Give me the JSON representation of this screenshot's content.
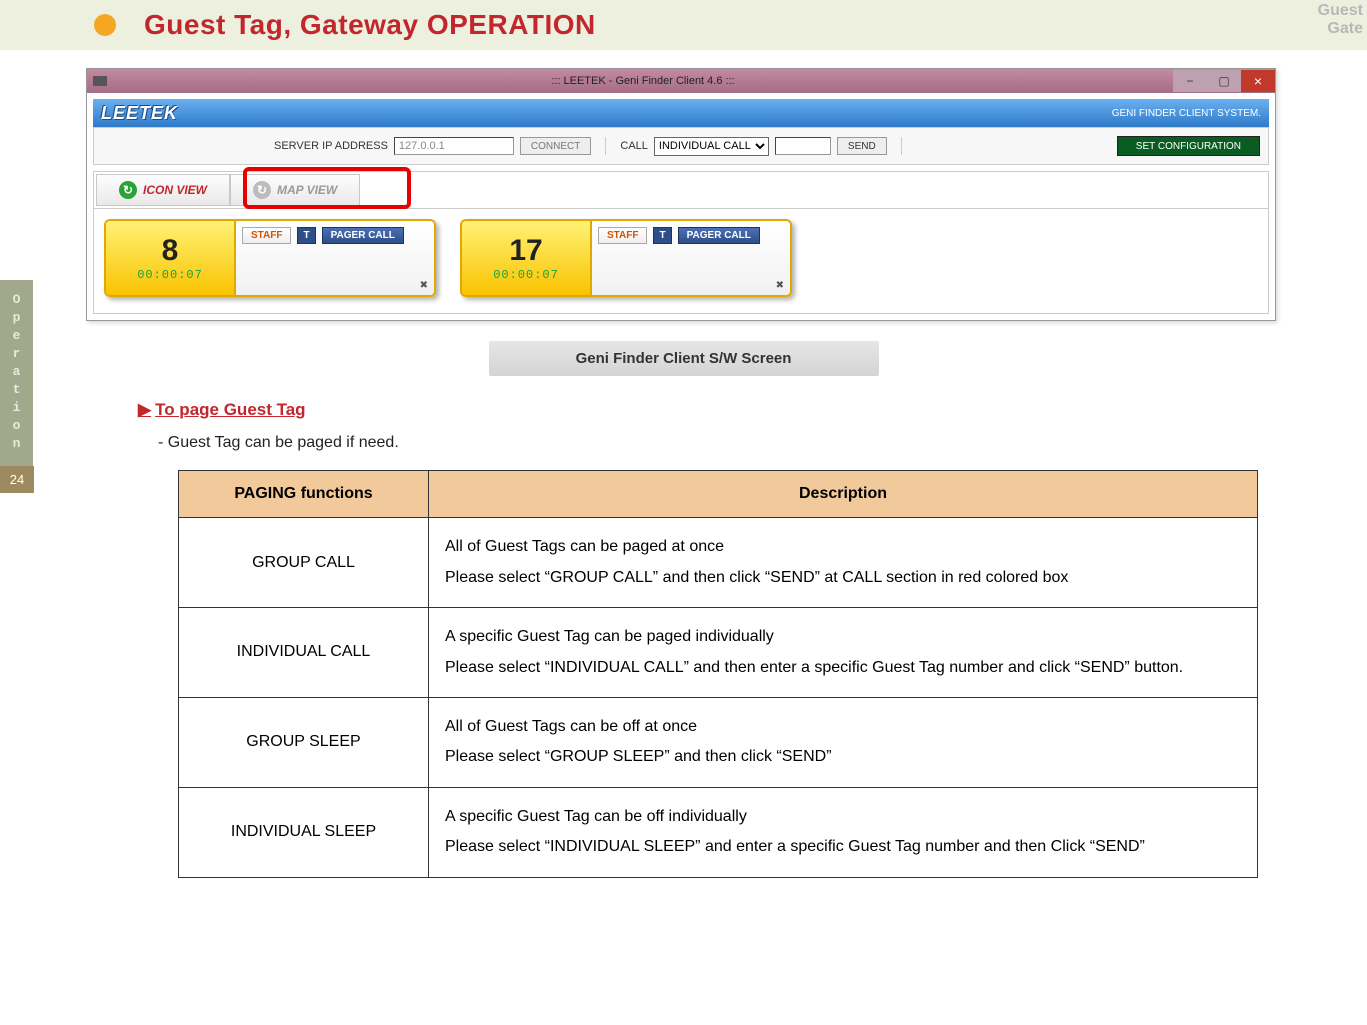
{
  "header": {
    "title": "Guest Tag, Gateway OPERATION",
    "right_line1": "Guest",
    "right_line2": "Gate",
    "bullet_color": "#f5a623",
    "title_color": "#c1272d",
    "band_bg": "#edf0de"
  },
  "sidebar": {
    "label": "Operation",
    "page_num": "24",
    "label_bg": "#a1a88b",
    "page_bg": "#9e8a5e"
  },
  "window": {
    "title": "::: LEETEK - Geni Finder Client 4.6 :::",
    "brand": "LEETEK",
    "brand_right": "GENI FINDER CLIENT SYSTEM.",
    "ip_label": "SERVER IP ADDRESS",
    "ip_value": "127.0.0.1",
    "connect_btn": "CONNECT",
    "call_label": "CALL",
    "call_selected": "INDIVIDUAL CALL",
    "send_btn": "SEND",
    "setconf_btn": "SET CONFIGURATION",
    "tab_icon": "ICON VIEW",
    "tab_map": "MAP VIEW",
    "titlebar_bg": "#a56d86",
    "brandbar_bg": "#2e7ac9",
    "setconf_bg": "#0a5c22",
    "redbox_color": "#e60000"
  },
  "cards": [
    {
      "num": "8",
      "time": "00:00:07",
      "staff": "STAFF",
      "t": "T",
      "pager": "PAGER CALL"
    },
    {
      "num": "17",
      "time": "00:00:07",
      "staff": "STAFF",
      "t": "T",
      "pager": "PAGER CALL"
    }
  ],
  "card_style": {
    "border_color": "#e0a800",
    "left_bg_top": "#fff176",
    "left_bg_bottom": "#f9c300",
    "time_color": "#1aa336",
    "pager_bg": "#2d4e86",
    "staff_color": "#d35400"
  },
  "caption": "Geni Finder Client S/W Screen",
  "section": {
    "heading": "To page Guest Tag",
    "arrow": "▶",
    "subline": "- Guest Tag can be paged if need.",
    "heading_color": "#c1272d"
  },
  "table": {
    "header_bg": "#f1c99a",
    "border_color": "#333333",
    "col1": "PAGING functions",
    "col2": "Description",
    "rows": [
      {
        "fn": "GROUP CALL",
        "desc": "All of Guest Tags can be paged at once\nPlease select \"GROUP CALL\" and then click \"SEND\" at CALL section in red colored box"
      },
      {
        "fn": "INDIVIDUAL CALL",
        "desc": "A specific Guest Tag can be paged individually\nPlease select \"INDIVIDUAL CALL\" and then enter a specific Guest Tag number  and click \"SEND\" button."
      },
      {
        "fn": "GROUP SLEEP",
        "desc": "All of Guest Tags can be off at once\nPlease select \"GROUP SLEEP\" and then click \"SEND\""
      },
      {
        "fn": "INDIVIDUAL SLEEP",
        "desc": "A specific Guest Tag can be off individually\nPlease select \"INDIVIDUAL SLEEP\" and enter a specific Guest Tag number and then Click \"SEND\""
      }
    ]
  }
}
